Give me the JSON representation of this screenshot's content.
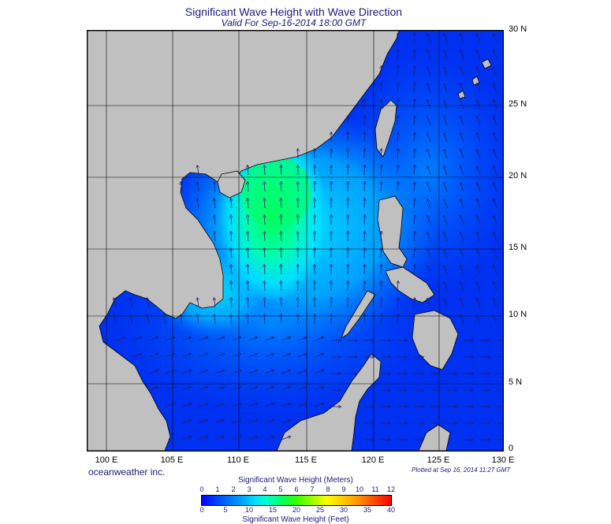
{
  "title": "Significant Wave Height with Wave Direction",
  "subtitle": "Valid For Sep-16-2014 18:00 GMT",
  "latitude_labels": [
    "30 N",
    "25 N",
    "20 N",
    "15 N",
    "10 N",
    "5 N",
    "0"
  ],
  "longitude_labels": [
    "100 E",
    "105 E",
    "110 E",
    "115 E",
    "120 E",
    "125 E",
    "130 E"
  ],
  "credit": "oceanweather inc.",
  "plotted_note": "Plotted at Sep 16, 2014 11:27 GMT",
  "colorbar": {
    "title_meters": "Significant Wave Height (Meters)",
    "title_feet": "Significant Wave Height (Feet)",
    "meter_ticks": [
      "0",
      "1",
      "2",
      "3",
      "4",
      "5",
      "6",
      "7",
      "8",
      "9",
      "10",
      "11",
      "12"
    ],
    "feet_ticks": [
      "0",
      "5",
      "10",
      "15",
      "20",
      "25",
      "30",
      "35",
      "40"
    ]
  },
  "colors": {
    "land": "#c0c0c0",
    "deep_blue": "#0010e0",
    "mid_blue": "#0060ff",
    "cyan": "#00d8ff",
    "aqua": "#00ffd0",
    "green": "#00ff66",
    "arrow": "#202070",
    "text": "#1a1a7a"
  }
}
